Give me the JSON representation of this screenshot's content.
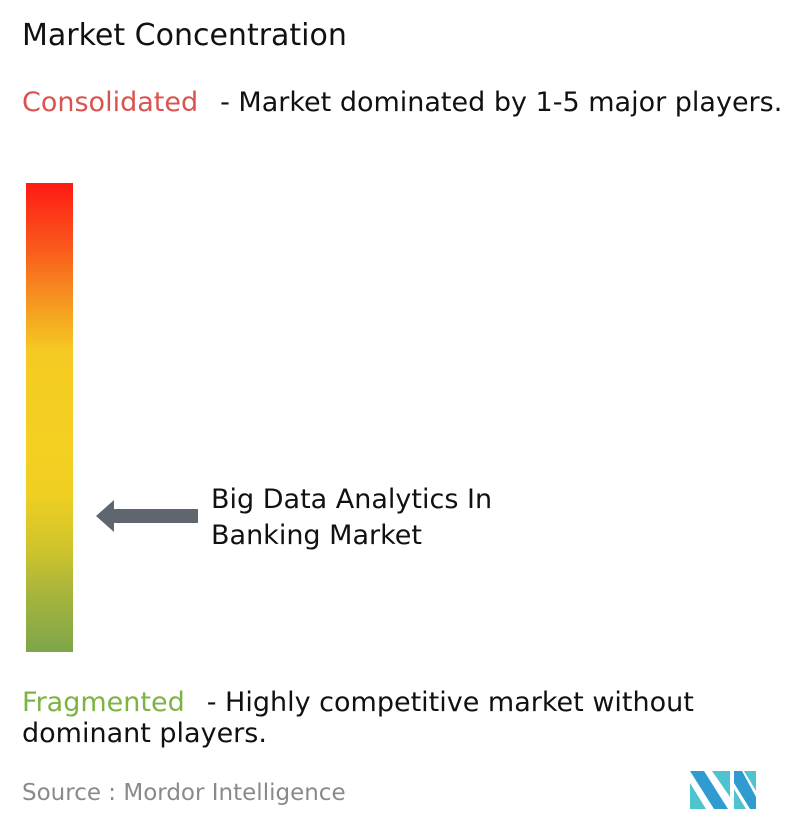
{
  "title": "Market Concentration",
  "consolidated": {
    "keyword": "Consolidated",
    "description": "- Market dominated by 1-5 major players.",
    "color": "#d9534f"
  },
  "fragmented": {
    "keyword": "Fragmented",
    "description": "- Highly competitive market without dominant players.",
    "color": "#7cb342"
  },
  "scale": {
    "top_color": "#fe1a14",
    "middle_color": "#f4d022",
    "bottom_color": "#7ea64a",
    "arrow_color": "#5f6670",
    "marker_level": "Fragmented side, about 29% of the way up from Fragmented"
  },
  "market_label": "Big Data Analytics In Banking Market",
  "source": "Source :  Mordor Intelligence",
  "logo": {
    "name": "mordor-intelligence-logo",
    "colors": [
      "#2f9bd0",
      "#4fc4cf"
    ]
  }
}
